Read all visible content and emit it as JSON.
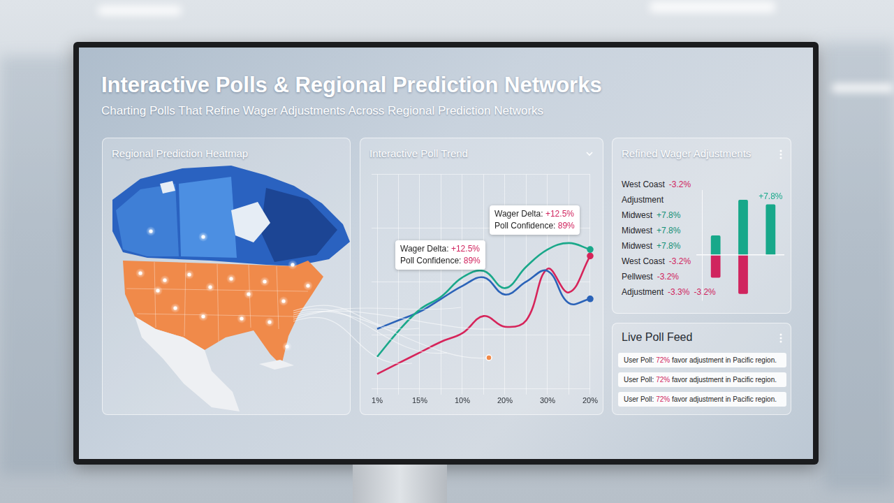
{
  "header": {
    "title": "Interactive Polls & Regional Prediction Networks",
    "subtitle": "Charting Polls That Refine Wager Adjustments Across Regional Prediction Networks"
  },
  "map_panel": {
    "title": "Regional Prediction Heatmap"
  },
  "chart_data": [
    {
      "type": "line",
      "title": "Interactive Poll Trend",
      "categories": [
        "1%",
        null,
        "15%",
        null,
        "10%",
        null,
        "20%",
        null,
        "30%",
        null,
        "20%"
      ],
      "series": [
        {
          "color": "#1aa88a",
          "values": [
            15,
            27,
            37,
            43,
            52,
            55,
            47,
            57,
            65,
            68,
            65
          ]
        },
        {
          "color": "#2b63b8",
          "values": [
            28,
            32,
            36,
            42,
            48,
            52,
            44,
            50,
            55,
            40,
            42
          ]
        },
        {
          "color": "#d6245a",
          "values": [
            7,
            12,
            17,
            22,
            26,
            34,
            29,
            32,
            56,
            45,
            62
          ]
        }
      ],
      "ylim": [
        0,
        100
      ],
      "yticks": [
        0,
        25,
        50,
        75,
        100
      ],
      "grid": true,
      "tick_labels": "x",
      "annotations": [
        {
          "lines": [
            [
              "Wager Delta:",
              "+12.5%"
            ],
            [
              "Poll Confidence:",
              "89%"
            ]
          ]
        },
        {
          "lines": [
            [
              "Wager Delta:",
              "+12.5%"
            ],
            [
              "Poll Confidence:",
              "89%"
            ]
          ]
        }
      ]
    },
    {
      "type": "bar",
      "title": "Refined Wager Adjustments",
      "categories": [
        null,
        null,
        null
      ],
      "series": [
        {
          "color": "#17a88a",
          "values": [
            3.0,
            8.5,
            7.8
          ],
          "value_labels": [
            null,
            null,
            "+7.8%"
          ]
        },
        {
          "color": "#d0245e",
          "values": [
            -3.5,
            -6.0,
            null
          ]
        }
      ],
      "stacked": true,
      "data_labels": true,
      "ylim": [
        -7,
        10
      ],
      "yticks": [
        0
      ],
      "grid": true,
      "tick_labels": false,
      "annotations": [
        {
          "parts": [
            "West Coast",
            "-3.2%"
          ]
        },
        {
          "parts": [
            "Adjustment"
          ]
        },
        {
          "parts": [
            "Midwest",
            "+7.8%"
          ]
        },
        {
          "parts": [
            "Midwest",
            "+7.8%"
          ]
        },
        {
          "parts": [
            "Midwest",
            "+7.8%"
          ]
        },
        {
          "parts": [
            "West Coast",
            "-3.2%"
          ]
        },
        {
          "parts": [
            "Pellwest",
            "-3.2%"
          ]
        },
        {
          "parts": [
            "Adjustment",
            "-3.3%",
            "-3.2%"
          ]
        }
      ]
    }
  ],
  "poll_feed": {
    "title": "Live Poll Feed",
    "items": [
      {
        "parts": [
          "User Poll:",
          "72%",
          "favor adjustment in Pacific region."
        ]
      },
      {
        "parts": [
          "User Poll:",
          "72%",
          "favor adjustment in Pacific region."
        ]
      },
      {
        "parts": [
          "User Poll:",
          "72%",
          "favor adjustment in Pacific region."
        ]
      }
    ]
  }
}
